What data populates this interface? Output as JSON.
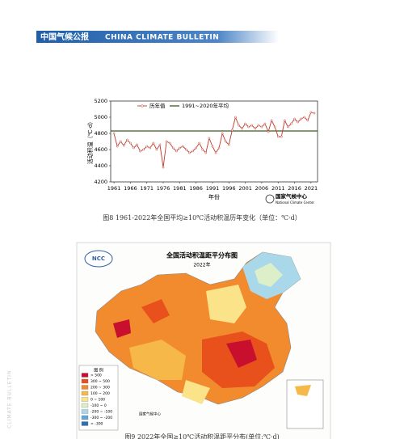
{
  "header": {
    "title_cn": "中国气候公报",
    "title_en": "CHINA CLIMATE BULLETIN"
  },
  "side_text": "CLIMATE BULLETIN",
  "chart_data": {
    "type": "line",
    "xlabel": "年份",
    "ylabel": "活动积温（℃·d）",
    "x": [
      1961,
      1962,
      1963,
      1964,
      1965,
      1966,
      1967,
      1968,
      1969,
      1970,
      1971,
      1972,
      1973,
      1974,
      1975,
      1976,
      1977,
      1978,
      1979,
      1980,
      1981,
      1982,
      1983,
      1984,
      1985,
      1986,
      1987,
      1988,
      1989,
      1990,
      1991,
      1992,
      1993,
      1994,
      1995,
      1996,
      1997,
      1998,
      1999,
      2000,
      2001,
      2002,
      2003,
      2004,
      2005,
      2006,
      2007,
      2008,
      2009,
      2010,
      2011,
      2012,
      2013,
      2014,
      2015,
      2016,
      2017,
      2018,
      2019,
      2020,
      2021,
      2022
    ],
    "series": [
      {
        "name": "历年值",
        "color": "#c0392b",
        "values": [
          4800,
          4640,
          4700,
          4650,
          4720,
          4680,
          4620,
          4660,
          4580,
          4600,
          4640,
          4620,
          4680,
          4600,
          4660,
          4380,
          4700,
          4680,
          4620,
          4580,
          4620,
          4640,
          4600,
          4560,
          4580,
          4620,
          4680,
          4600,
          4560,
          4740,
          4640,
          4560,
          4620,
          4800,
          4700,
          4660,
          4840,
          5000,
          4900,
          4860,
          4920,
          4880,
          4900,
          4860,
          4900,
          4880,
          4920,
          4820,
          4960,
          4880,
          4760,
          4760,
          4960,
          4880,
          4920,
          4980,
          4940,
          4980,
          5000,
          4960,
          5060,
          5050
        ]
      }
    ],
    "reference": {
      "name": "1991~2020年平均",
      "value": 4830,
      "color": "#3d5a1f"
    },
    "xlim": [
      1960,
      2023
    ],
    "xticks": [
      1961,
      1966,
      1971,
      1976,
      1981,
      1986,
      1991,
      1996,
      2001,
      2006,
      2011,
      2016,
      2021
    ],
    "ylim": [
      4200,
      5200
    ],
    "yticks": [
      4200,
      4400,
      4600,
      4800,
      5000,
      5200
    ]
  },
  "logo": {
    "cn": "国家气候中心",
    "en": "National Climate Center"
  },
  "figure8_caption": "图8 1961-2022年全国平均≥10℃活动积温历年变化（单位：℃·d）",
  "map": {
    "title": "全国活动积温距平分布图",
    "subtitle": "2022年",
    "logo": "NCC",
    "legend_title": "图 例",
    "legend": [
      {
        "label": "> 500",
        "color": "#c8102e"
      },
      {
        "label": "300 ~ 500",
        "color": "#e8501c"
      },
      {
        "label": "200 ~ 300",
        "color": "#f28a2e"
      },
      {
        "label": "100 ~ 200",
        "color": "#f7b84a"
      },
      {
        "label": "0 ~ 100",
        "color": "#fbe38a"
      },
      {
        "label": "-100 ~ 0",
        "color": "#dcefc8"
      },
      {
        "label": "-200 ~ -100",
        "color": "#a8d8ea"
      },
      {
        "label": "-300 ~ -200",
        "color": "#5fa8d8"
      },
      {
        "label": "< -300",
        "color": "#2f6fb5"
      }
    ],
    "credit": "国家气候中心"
  },
  "figure9_caption": "图9 2022年全国≥10℃活动积温距平分布(单位:℃·d)"
}
